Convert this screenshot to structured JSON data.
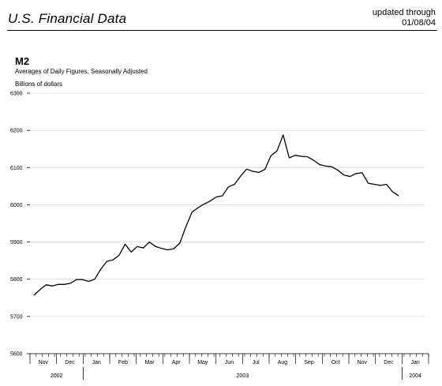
{
  "header": {
    "title": "U.S. Financial Data",
    "updated_line1": "updated through",
    "updated_line2": "01/08/04"
  },
  "chart_data": {
    "type": "line",
    "title": "M2",
    "subtitle": "Averages of Daily Figures, Seasonally Adjusted",
    "ylabel": "Billions of dollars",
    "ylim": [
      5600,
      6300
    ],
    "yticks": [
      5600,
      5700,
      5800,
      5900,
      6000,
      6100,
      6200,
      6300
    ],
    "grid": true,
    "months": [
      "Nov",
      "Dec",
      "Jan",
      "Feb",
      "Mar",
      "Apr",
      "May",
      "Jun",
      "Jul",
      "Aug",
      "Sep",
      "Oct",
      "Nov",
      "Dec",
      "Jan"
    ],
    "years": [
      "2002",
      "2003",
      "2004"
    ],
    "series": [
      {
        "values": [
          5757,
          5772,
          5785,
          5782,
          5786,
          5786,
          5789,
          5799,
          5799,
          5794,
          5800,
          5827,
          5848,
          5852,
          5864,
          5894,
          5873,
          5888,
          5884,
          5900,
          5888,
          5883,
          5879,
          5882,
          5897,
          5941,
          5980,
          5992,
          6002,
          6010,
          6021,
          6024,
          6048,
          6055,
          6077,
          6096,
          6090,
          6087,
          6095,
          6132,
          6145,
          6188,
          6126,
          6133,
          6130,
          6129,
          6120,
          6108,
          6104,
          6102,
          6093,
          6080,
          6076,
          6084,
          6086,
          6058,
          6055,
          6052,
          6055,
          6035,
          6024
        ]
      }
    ]
  }
}
